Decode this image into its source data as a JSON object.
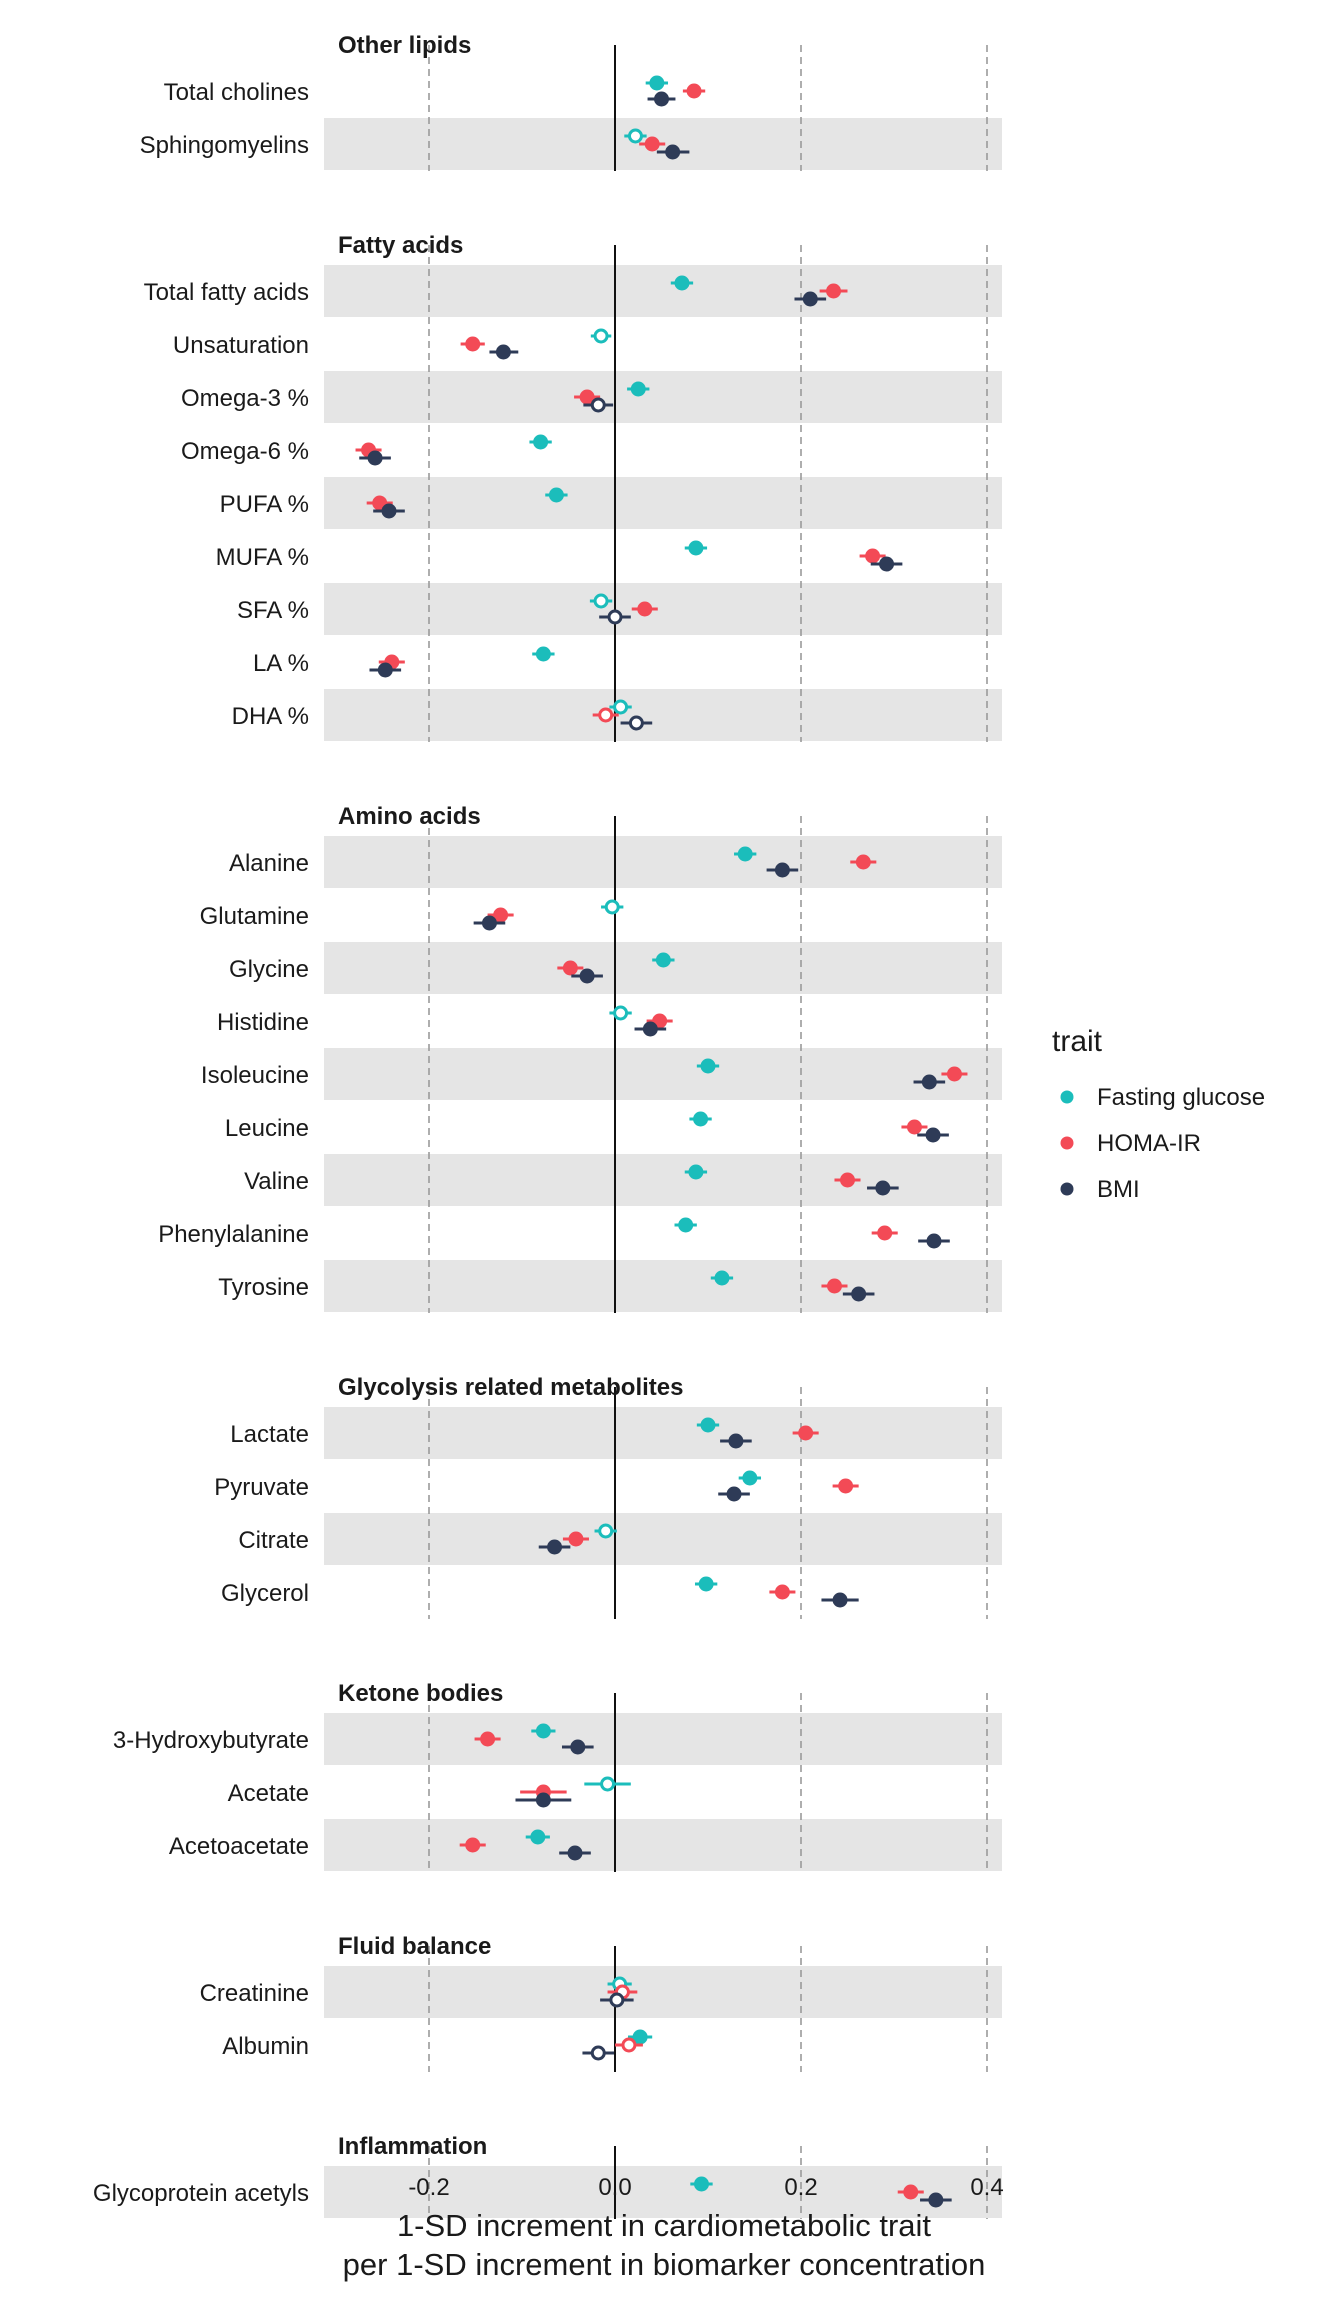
{
  "chart_data": {
    "type": "forest",
    "xlabel_lines": [
      "1-SD increment in cardiometabolic trait",
      "per 1-SD increment in biomarker concentration"
    ],
    "xlim": [
      -0.31,
      0.415
    ],
    "x_ticks": [
      -0.2,
      0.0,
      0.2,
      0.4
    ],
    "x_tick_labels": [
      "-0.2",
      "0.0",
      "0.2",
      "0.4"
    ],
    "dashed_gridlines_at": [
      -0.2,
      0.2,
      0.4
    ],
    "reference_line_at": 0,
    "legend": {
      "title": "trait",
      "placement": "right",
      "entries": [
        {
          "name": "Fasting glucose",
          "color": "#1bbdbb"
        },
        {
          "name": "HOMA-IR",
          "color": "#f34a56"
        },
        {
          "name": "BMI",
          "color": "#2e3b57"
        }
      ]
    },
    "panels": [
      {
        "title": "Other lipids",
        "rows": [
          {
            "label": "Total cholines",
            "values": [
              {
                "est": 0.045,
                "lo": 0.033,
                "hi": 0.057,
                "filled": true
              },
              {
                "est": 0.085,
                "lo": 0.073,
                "hi": 0.097,
                "filled": true
              },
              {
                "est": 0.05,
                "lo": 0.035,
                "hi": 0.065,
                "filled": true
              }
            ]
          },
          {
            "label": "Sphingomyelins",
            "values": [
              {
                "est": 0.022,
                "lo": 0.01,
                "hi": 0.034,
                "filled": false
              },
              {
                "est": 0.04,
                "lo": 0.026,
                "hi": 0.054,
                "filled": true
              },
              {
                "est": 0.062,
                "lo": 0.045,
                "hi": 0.08,
                "filled": true
              }
            ]
          }
        ]
      },
      {
        "title": "Fatty acids",
        "rows": [
          {
            "label": "Total fatty acids",
            "values": [
              {
                "est": 0.072,
                "lo": 0.06,
                "hi": 0.084,
                "filled": true
              },
              {
                "est": 0.235,
                "lo": 0.22,
                "hi": 0.25,
                "filled": true
              },
              {
                "est": 0.21,
                "lo": 0.193,
                "hi": 0.227,
                "filled": true
              }
            ]
          },
          {
            "label": "Unsaturation",
            "values": [
              {
                "est": -0.015,
                "lo": -0.026,
                "hi": -0.004,
                "filled": false
              },
              {
                "est": -0.153,
                "lo": -0.166,
                "hi": -0.14,
                "filled": true
              },
              {
                "est": -0.12,
                "lo": -0.135,
                "hi": -0.104,
                "filled": true
              }
            ]
          },
          {
            "label": "Omega-3 %",
            "values": [
              {
                "est": 0.025,
                "lo": 0.013,
                "hi": 0.037,
                "filled": true
              },
              {
                "est": -0.03,
                "lo": -0.044,
                "hi": -0.016,
                "filled": true
              },
              {
                "est": -0.018,
                "lo": -0.034,
                "hi": -0.002,
                "filled": false
              }
            ]
          },
          {
            "label": "Omega-6 %",
            "values": [
              {
                "est": -0.08,
                "lo": -0.092,
                "hi": -0.068,
                "filled": true
              },
              {
                "est": -0.265,
                "lo": -0.279,
                "hi": -0.251,
                "filled": true
              },
              {
                "est": -0.258,
                "lo": -0.275,
                "hi": -0.241,
                "filled": true
              }
            ]
          },
          {
            "label": "PUFA %",
            "values": [
              {
                "est": -0.063,
                "lo": -0.075,
                "hi": -0.051,
                "filled": true
              },
              {
                "est": -0.253,
                "lo": -0.267,
                "hi": -0.239,
                "filled": true
              },
              {
                "est": -0.243,
                "lo": -0.26,
                "hi": -0.226,
                "filled": true
              }
            ]
          },
          {
            "label": "MUFA %",
            "values": [
              {
                "est": 0.087,
                "lo": 0.075,
                "hi": 0.099,
                "filled": true
              },
              {
                "est": 0.277,
                "lo": 0.263,
                "hi": 0.291,
                "filled": true
              },
              {
                "est": 0.292,
                "lo": 0.275,
                "hi": 0.309,
                "filled": true
              }
            ]
          },
          {
            "label": "SFA %",
            "values": [
              {
                "est": -0.015,
                "lo": -0.027,
                "hi": -0.003,
                "filled": false
              },
              {
                "est": 0.032,
                "lo": 0.018,
                "hi": 0.046,
                "filled": true
              },
              {
                "est": 0.0,
                "lo": -0.017,
                "hi": 0.017,
                "filled": false
              }
            ]
          },
          {
            "label": "LA %",
            "values": [
              {
                "est": -0.077,
                "lo": -0.089,
                "hi": -0.065,
                "filled": true
              },
              {
                "est": -0.24,
                "lo": -0.254,
                "hi": -0.226,
                "filled": true
              },
              {
                "est": -0.247,
                "lo": -0.264,
                "hi": -0.23,
                "filled": true
              }
            ]
          },
          {
            "label": "DHA %",
            "values": [
              {
                "est": 0.006,
                "lo": -0.006,
                "hi": 0.018,
                "filled": false
              },
              {
                "est": -0.01,
                "lo": -0.024,
                "hi": 0.004,
                "filled": false
              },
              {
                "est": 0.023,
                "lo": 0.006,
                "hi": 0.04,
                "filled": false
              }
            ]
          }
        ]
      },
      {
        "title": "Amino acids",
        "rows": [
          {
            "label": "Alanine",
            "values": [
              {
                "est": 0.14,
                "lo": 0.128,
                "hi": 0.152,
                "filled": true
              },
              {
                "est": 0.267,
                "lo": 0.253,
                "hi": 0.281,
                "filled": true
              },
              {
                "est": 0.18,
                "lo": 0.163,
                "hi": 0.197,
                "filled": true
              }
            ]
          },
          {
            "label": "Glutamine",
            "values": [
              {
                "est": -0.003,
                "lo": -0.015,
                "hi": 0.009,
                "filled": false
              },
              {
                "est": -0.123,
                "lo": -0.137,
                "hi": -0.109,
                "filled": true
              },
              {
                "est": -0.135,
                "lo": -0.152,
                "hi": -0.118,
                "filled": true
              }
            ]
          },
          {
            "label": "Glycine",
            "values": [
              {
                "est": 0.052,
                "lo": 0.04,
                "hi": 0.064,
                "filled": true
              },
              {
                "est": -0.048,
                "lo": -0.062,
                "hi": -0.034,
                "filled": true
              },
              {
                "est": -0.03,
                "lo": -0.047,
                "hi": -0.013,
                "filled": true
              }
            ]
          },
          {
            "label": "Histidine",
            "values": [
              {
                "est": 0.006,
                "lo": -0.006,
                "hi": 0.018,
                "filled": false
              },
              {
                "est": 0.048,
                "lo": 0.034,
                "hi": 0.062,
                "filled": true
              },
              {
                "est": 0.038,
                "lo": 0.021,
                "hi": 0.055,
                "filled": true
              }
            ]
          },
          {
            "label": "Isoleucine",
            "values": [
              {
                "est": 0.1,
                "lo": 0.088,
                "hi": 0.112,
                "filled": true
              },
              {
                "est": 0.365,
                "lo": 0.351,
                "hi": 0.379,
                "filled": true
              },
              {
                "est": 0.338,
                "lo": 0.321,
                "hi": 0.355,
                "filled": true
              }
            ]
          },
          {
            "label": "Leucine",
            "values": [
              {
                "est": 0.092,
                "lo": 0.08,
                "hi": 0.104,
                "filled": true
              },
              {
                "est": 0.322,
                "lo": 0.308,
                "hi": 0.336,
                "filled": true
              },
              {
                "est": 0.342,
                "lo": 0.325,
                "hi": 0.359,
                "filled": true
              }
            ]
          },
          {
            "label": "Valine",
            "values": [
              {
                "est": 0.087,
                "lo": 0.075,
                "hi": 0.099,
                "filled": true
              },
              {
                "est": 0.25,
                "lo": 0.236,
                "hi": 0.264,
                "filled": true
              },
              {
                "est": 0.288,
                "lo": 0.271,
                "hi": 0.305,
                "filled": true
              }
            ]
          },
          {
            "label": "Phenylalanine",
            "values": [
              {
                "est": 0.076,
                "lo": 0.064,
                "hi": 0.088,
                "filled": true
              },
              {
                "est": 0.29,
                "lo": 0.276,
                "hi": 0.304,
                "filled": true
              },
              {
                "est": 0.343,
                "lo": 0.326,
                "hi": 0.36,
                "filled": true
              }
            ]
          },
          {
            "label": "Tyrosine",
            "values": [
              {
                "est": 0.115,
                "lo": 0.103,
                "hi": 0.127,
                "filled": true
              },
              {
                "est": 0.236,
                "lo": 0.222,
                "hi": 0.25,
                "filled": true
              },
              {
                "est": 0.262,
                "lo": 0.245,
                "hi": 0.279,
                "filled": true
              }
            ]
          }
        ]
      },
      {
        "title": "Glycolysis related metabolites",
        "rows": [
          {
            "label": "Lactate",
            "values": [
              {
                "est": 0.1,
                "lo": 0.088,
                "hi": 0.112,
                "filled": true
              },
              {
                "est": 0.205,
                "lo": 0.191,
                "hi": 0.219,
                "filled": true
              },
              {
                "est": 0.13,
                "lo": 0.113,
                "hi": 0.147,
                "filled": true
              }
            ]
          },
          {
            "label": "Pyruvate",
            "values": [
              {
                "est": 0.145,
                "lo": 0.133,
                "hi": 0.157,
                "filled": true
              },
              {
                "est": 0.248,
                "lo": 0.234,
                "hi": 0.262,
                "filled": true
              },
              {
                "est": 0.128,
                "lo": 0.111,
                "hi": 0.145,
                "filled": true
              }
            ]
          },
          {
            "label": "Citrate",
            "values": [
              {
                "est": -0.01,
                "lo": -0.022,
                "hi": 0.002,
                "filled": false
              },
              {
                "est": -0.042,
                "lo": -0.056,
                "hi": -0.028,
                "filled": true
              },
              {
                "est": -0.065,
                "lo": -0.082,
                "hi": -0.048,
                "filled": true
              }
            ]
          },
          {
            "label": "Glycerol",
            "values": [
              {
                "est": 0.098,
                "lo": 0.086,
                "hi": 0.11,
                "filled": true
              },
              {
                "est": 0.18,
                "lo": 0.166,
                "hi": 0.194,
                "filled": true
              },
              {
                "est": 0.242,
                "lo": 0.222,
                "hi": 0.262,
                "filled": true
              }
            ]
          }
        ]
      },
      {
        "title": "Ketone bodies",
        "rows": [
          {
            "label": "3-Hydroxybutyrate",
            "values": [
              {
                "est": -0.077,
                "lo": -0.09,
                "hi": -0.064,
                "filled": true
              },
              {
                "est": -0.137,
                "lo": -0.151,
                "hi": -0.123,
                "filled": true
              },
              {
                "est": -0.04,
                "lo": -0.057,
                "hi": -0.023,
                "filled": true
              }
            ]
          },
          {
            "label": "Acetate",
            "values": [
              {
                "est": -0.008,
                "lo": -0.033,
                "hi": 0.017,
                "filled": false
              },
              {
                "est": -0.077,
                "lo": -0.102,
                "hi": -0.052,
                "filled": true
              },
              {
                "est": -0.077,
                "lo": -0.107,
                "hi": -0.047,
                "filled": true
              }
            ]
          },
          {
            "label": "Acetoacetate",
            "values": [
              {
                "est": -0.083,
                "lo": -0.096,
                "hi": -0.07,
                "filled": true
              },
              {
                "est": -0.153,
                "lo": -0.167,
                "hi": -0.139,
                "filled": true
              },
              {
                "est": -0.043,
                "lo": -0.06,
                "hi": -0.026,
                "filled": true
              }
            ]
          }
        ]
      },
      {
        "title": "Fluid balance",
        "rows": [
          {
            "label": "Creatinine",
            "values": [
              {
                "est": 0.005,
                "lo": -0.008,
                "hi": 0.018,
                "filled": false
              },
              {
                "est": 0.008,
                "lo": -0.008,
                "hi": 0.024,
                "filled": false
              },
              {
                "est": 0.002,
                "lo": -0.016,
                "hi": 0.02,
                "filled": false
              }
            ]
          },
          {
            "label": "Albumin",
            "values": [
              {
                "est": 0.027,
                "lo": 0.014,
                "hi": 0.04,
                "filled": true
              },
              {
                "est": 0.015,
                "lo": 0.0,
                "hi": 0.03,
                "filled": false
              },
              {
                "est": -0.018,
                "lo": -0.035,
                "hi": -0.001,
                "filled": false
              }
            ]
          }
        ]
      },
      {
        "title": "Inflammation",
        "rows": [
          {
            "label": "Glycoprotein acetyls",
            "values": [
              {
                "est": 0.093,
                "lo": 0.081,
                "hi": 0.105,
                "filled": true
              },
              {
                "est": 0.318,
                "lo": 0.304,
                "hi": 0.332,
                "filled": true
              },
              {
                "est": 0.345,
                "lo": 0.328,
                "hi": 0.362,
                "filled": true
              }
            ]
          }
        ]
      }
    ]
  }
}
